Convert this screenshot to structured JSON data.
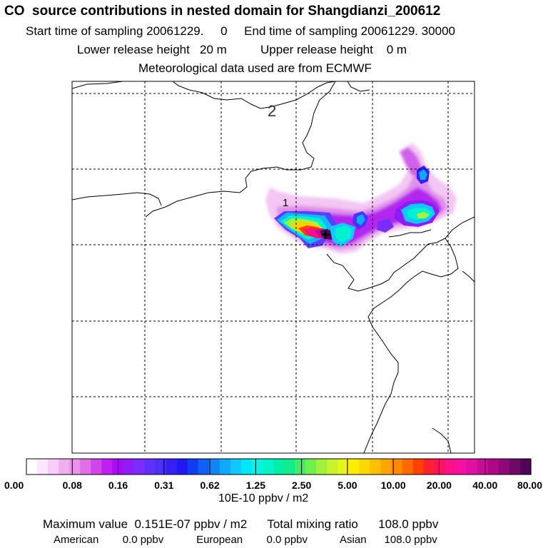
{
  "header": {
    "title": "CO  source contributions in nested domain for Shangdianzi_200612",
    "sampling": "Start time of sampling 20061229.     0     End time of sampling 20061229. 30000",
    "release": "Lower release height   20 m          Upper release height    0 m",
    "met": "Meteorological data used are from ECMWF"
  },
  "map": {
    "labels": [
      "2",
      "1"
    ],
    "receptor_symbol": "+"
  },
  "colorbar": {
    "ticks": [
      "0.00",
      "0.08",
      "0.16",
      "0.31",
      "0.62",
      "1.25",
      "2.50",
      "5.00",
      "10.00",
      "20.00",
      "40.00",
      "80.00"
    ],
    "colors": [
      "#ffffff",
      "#fbe6fb",
      "#f6cdf6",
      "#f0b0f0",
      "#e993ed",
      "#df70e8",
      "#d045e6",
      "#bf1ff0",
      "#a90cf5",
      "#8e1bf8",
      "#7a2cfb",
      "#5f30fb",
      "#4b30fa",
      "#3520f6",
      "#2018f0",
      "#0f3ef0",
      "#1060f5",
      "#1085f8",
      "#10a8fa",
      "#10c8fb",
      "#00e8f5",
      "#00f5e6",
      "#00f5c8",
      "#00f0a8",
      "#10ec8a",
      "#40ec6a",
      "#70f04e",
      "#a0f23c",
      "#c8f42c",
      "#e6f51e",
      "#f8f000",
      "#ffd800",
      "#ffc000",
      "#ffa500",
      "#ff8a00",
      "#ff6a00",
      "#ff4000",
      "#ff2030",
      "#ff1060",
      "#ff1088",
      "#f410a0",
      "#e010a0",
      "#c80c98",
      "#ac0888",
      "#900878",
      "#700868",
      "#500458"
    ],
    "units": "10E-10 ppbv / m2"
  },
  "summary": {
    "max_line": "Maximum value  0.151E-07 ppbv / m2      Total mixing ratio      108.0 ppbv",
    "regions_line": "American        0.0 ppbv           European        0.0 ppbv           Asian      108.0 ppbv"
  }
}
